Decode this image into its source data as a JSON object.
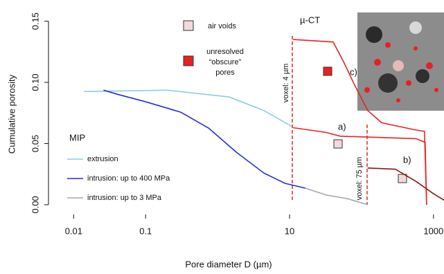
{
  "chart_data": {
    "type": "line",
    "x_label": "Pore diameter D (µm)",
    "y_label": "Cumulative porosity",
    "xscale": "log",
    "xlim": [
      0.004,
      1400
    ],
    "xticks": [
      0.01,
      0.1,
      10,
      1000
    ],
    "ylim": [
      -0.008,
      0.156
    ],
    "yticks": [
      {
        "value": 0,
        "label": "0.00"
      },
      {
        "value": 0.05,
        "label": "0.05"
      },
      {
        "value": 0.1,
        "label": "0.10"
      },
      {
        "value": 0.15,
        "label": "0.15"
      }
    ],
    "legend_title": "MIP",
    "series": [
      {
        "name": "extrusion",
        "color": "#8ecbe0",
        "x": [
          0.0139,
          0.199,
          1.46,
          4.4,
          10.7
        ],
        "values": [
          0.0925,
          0.0936,
          0.088,
          0.077,
          0.064
        ]
      },
      {
        "name": "intrusion: up to 400 MPa",
        "color": "#1f2fd6",
        "x": [
          0.026,
          0.042,
          0.102,
          0.309,
          0.75,
          1.82,
          4.4,
          8.6,
          16.6
        ],
        "values": [
          0.0936,
          0.09,
          0.084,
          0.0756,
          0.0626,
          0.0429,
          0.0259,
          0.0175,
          0.0135
        ]
      },
      {
        "name": "intrusion: up to 3 MPa",
        "color": "#a6a6a6",
        "x": [
          16.6,
          32.4,
          62.8,
          122
        ],
        "values": [
          0.0135,
          0.0079,
          0.005,
          0
        ]
      },
      {
        "label": "c)",
        "color": "#e8231f",
        "x": [
          11.2,
          40.4,
          56.2,
          78.3,
          122,
          190,
          575,
          750,
          802
        ],
        "values": [
          0.135,
          0.133,
          0.117,
          0.099,
          0.077,
          0.067,
          0.061,
          0.06,
          0
        ]
      },
      {
        "label": "a)",
        "color": "#e8231f",
        "x": [
          11.2,
          32.4,
          50.4,
          575,
          767,
          802
        ],
        "values": [
          0.063,
          0.059,
          0.056,
          0.054,
          0.051,
          0
        ]
      },
      {
        "label": "b)",
        "color": "#8b1414",
        "x": [
          122,
          296,
          575,
          1000,
          1426
        ],
        "values": [
          0.03,
          0.029,
          0.019,
          0.009,
          0.0034
        ]
      }
    ],
    "annotations": [
      "µ-CT",
      "voxel: 4 µm",
      "voxel: 75 µm",
      "air voids",
      "unresolved",
      "“obscure”",
      "pores"
    ]
  }
}
